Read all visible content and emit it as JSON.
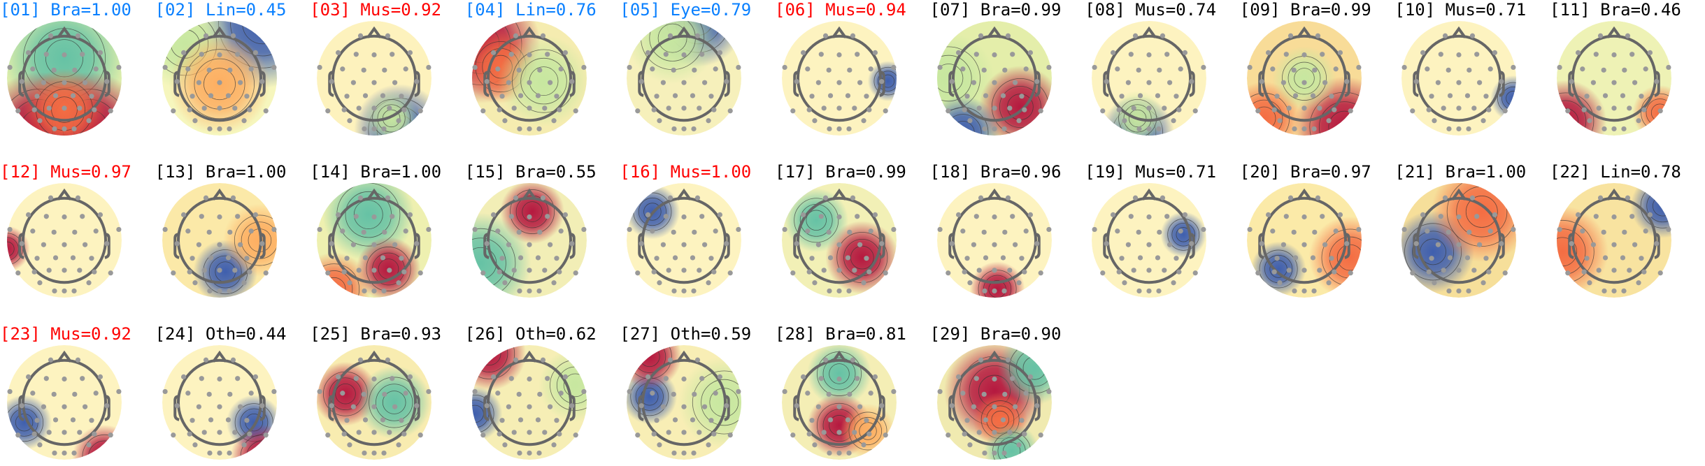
{
  "chart_data": {
    "type": "heatmap",
    "colormap": "Spectral_r",
    "colors": {
      "brain": "#0a80ff",
      "muscle": "#ff0000",
      "other": "#000000"
    },
    "components": [
      {
        "title": "[01] Bra=1.00",
        "color": "#0a80ff"
      },
      {
        "title": "[02] Lin=0.45",
        "color": "#0a80ff"
      },
      {
        "title": "[03] Mus=0.92",
        "color": "#ff0000"
      },
      {
        "title": "[04] Lin=0.76",
        "color": "#0a80ff"
      },
      {
        "title": "[05] Eye=0.79",
        "color": "#0a80ff"
      },
      {
        "title": "[06] Mus=0.94",
        "color": "#ff0000"
      },
      {
        "title": "[07] Bra=0.99",
        "color": "#000000"
      },
      {
        "title": "[08] Mus=0.74",
        "color": "#000000"
      },
      {
        "title": "[09] Bra=0.99",
        "color": "#000000"
      },
      {
        "title": "[10] Mus=0.71",
        "color": "#000000"
      },
      {
        "title": "[11] Bra=0.46",
        "color": "#000000"
      },
      {
        "title": "[12] Mus=0.97",
        "color": "#ff0000"
      },
      {
        "title": "[13] Bra=1.00",
        "color": "#000000"
      },
      {
        "title": "[14] Bra=1.00",
        "color": "#000000"
      },
      {
        "title": "[15] Bra=0.55",
        "color": "#000000"
      },
      {
        "title": "[16] Mus=1.00",
        "color": "#ff0000"
      },
      {
        "title": "[17] Bra=0.99",
        "color": "#000000"
      },
      {
        "title": "[18] Bra=0.96",
        "color": "#000000"
      },
      {
        "title": "[19] Mus=0.71",
        "color": "#000000"
      },
      {
        "title": "[20] Bra=0.97",
        "color": "#000000"
      },
      {
        "title": "[21] Bra=1.00",
        "color": "#000000"
      },
      {
        "title": "[22] Lin=0.78",
        "color": "#000000"
      },
      {
        "title": "[23] Mus=0.92",
        "color": "#ff0000"
      },
      {
        "title": "[24] Oth=0.44",
        "color": "#000000"
      },
      {
        "title": "[25] Bra=0.93",
        "color": "#000000"
      },
      {
        "title": "[26] Oth=0.62",
        "color": "#000000"
      },
      {
        "title": "[27] Oth=0.59",
        "color": "#000000"
      },
      {
        "title": "[28] Bra=0.81",
        "color": "#000000"
      },
      {
        "title": "[29] Bra=0.90",
        "color": "#000000"
      }
    ]
  }
}
